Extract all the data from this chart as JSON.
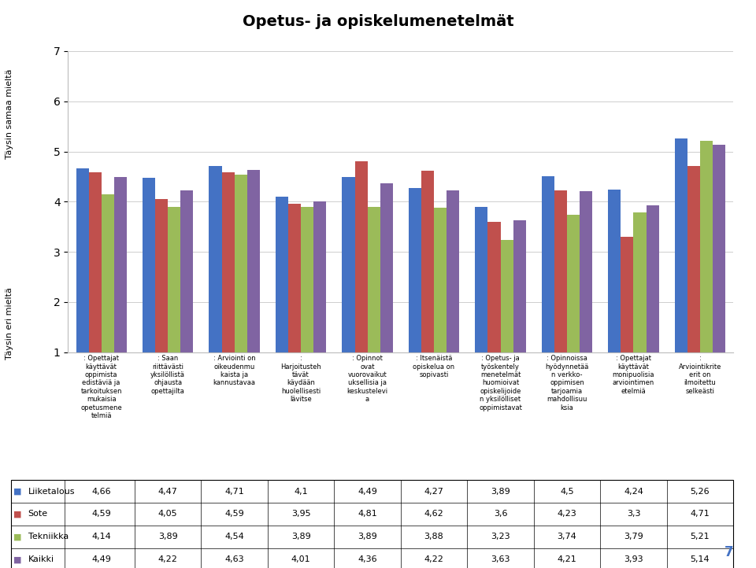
{
  "title": "Opetus- ja opiskelumenetelmät",
  "ylabel_top": "Täysin samaa mieltä",
  "ylabel_bottom": "Täysin eri mieltä",
  "categories": [
    ": Opettajat\nkäyttävät\noppimista\nedistäviä ja\ntarkoituksen\nmukaisia\nopetusmene\ntelmiä",
    ": Saan\nriittävästi\nyksilöllistä\nohjausta\nopettajilta",
    ": Arviointi on\noikeudenmu\nkaista ja\nkannustavaa",
    ":\nHarjoitusteh\ntävät\nkäydään\nhuolellisesti\nlävitse",
    ": Opinnot\novat\nvuorovaikut\nuksellisia ja\nkeskustelevi\na",
    ": Itsenäistä\nopiskelua on\nsopivasti",
    ": Opetus- ja\ntyöskentely\nmenetelmät\nhuomioivat\nopiskelijoide\nn yksilölliset\noppimistavat",
    ": Opinnoissa\nhyödynnetää\nn verkko-\noppimisen\ntarjoamia\nmahdollisuu\nksia",
    ": Opettajat\nkäyttävät\nmonipuolisia\narviointimen\netelmiä",
    ":\nArviointikrite\nerit on\nilmoitettu\nselkeästi"
  ],
  "series": {
    "Liiketalous": [
      4.66,
      4.47,
      4.71,
      4.1,
      4.49,
      4.27,
      3.89,
      4.5,
      4.24,
      5.26
    ],
    "Sote": [
      4.59,
      4.05,
      4.59,
      3.95,
      4.81,
      4.62,
      3.6,
      4.23,
      3.3,
      4.71
    ],
    "Tekniikka": [
      4.14,
      3.89,
      4.54,
      3.89,
      3.89,
      3.88,
      3.23,
      3.74,
      3.79,
      5.21
    ],
    "Kaikki": [
      4.49,
      4.22,
      4.63,
      4.01,
      4.36,
      4.22,
      3.63,
      4.21,
      3.93,
      5.14
    ]
  },
  "colors": {
    "Liiketalous": "#4472C4",
    "Sote": "#C0504D",
    "Tekniikka": "#9BBB59",
    "Kaikki": "#8064A2"
  },
  "ylim": [
    1,
    7
  ],
  "yticks": [
    1,
    2,
    3,
    4,
    5,
    6,
    7
  ],
  "background_color": "#FFFFFF",
  "page_number": "7"
}
